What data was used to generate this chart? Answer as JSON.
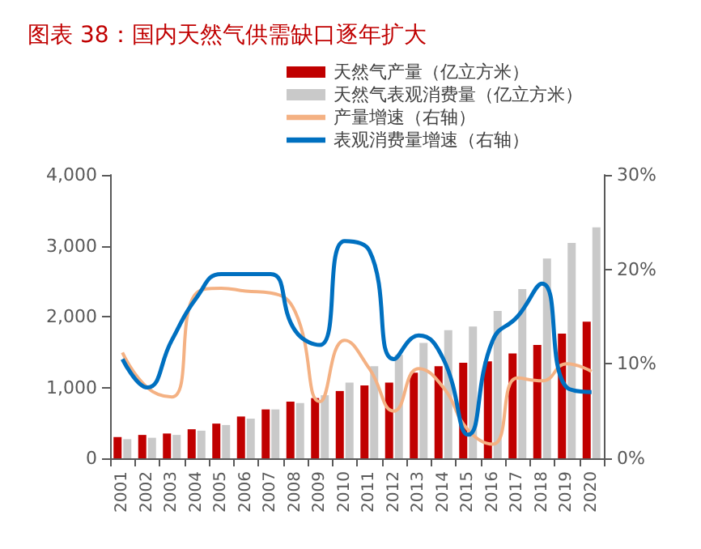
{
  "chart_data": {
    "type": "bar",
    "title": "图表 38：国内天然气供需缺口逐年扩大",
    "categories": [
      "2001",
      "2002",
      "2003",
      "2004",
      "2005",
      "2006",
      "2007",
      "2008",
      "2009",
      "2010",
      "2011",
      "2012",
      "2013",
      "2014",
      "2015",
      "2016",
      "2017",
      "2018",
      "2019",
      "2020"
    ],
    "series": [
      {
        "name": "天然气产量（亿立方米）",
        "color": "#c00000",
        "values": [
          300,
          330,
          350,
          410,
          490,
          590,
          690,
          800,
          850,
          950,
          1030,
          1070,
          1210,
          1300,
          1350,
          1370,
          1480,
          1600,
          1760,
          1930
        ]
      },
      {
        "name": "天然气表观消费量（亿立方米）",
        "color": "#c9c9c9",
        "values": [
          270,
          290,
          330,
          390,
          470,
          560,
          690,
          780,
          890,
          1070,
          1300,
          1460,
          1630,
          1810,
          1860,
          2080,
          2390,
          2820,
          3040,
          3260
        ]
      },
      {
        "name": "产量增速（右轴）",
        "type": "line",
        "axis": "y2",
        "color": "#f4b183",
        "values": [
          11.2,
          7.5,
          6.5,
          17.5,
          18,
          17.7,
          17.5,
          15.5,
          6,
          12.5,
          9.5,
          5,
          9.5,
          7.5,
          3,
          1.5,
          8.5,
          8.2,
          10,
          9.2
        ]
      },
      {
        "name": "表观消费量增速（右轴）",
        "type": "line",
        "axis": "y2",
        "color": "#0070c0",
        "values": [
          10.5,
          7.5,
          12.5,
          17,
          19.5,
          19.5,
          19.5,
          13.5,
          12,
          23,
          22,
          10.5,
          13,
          10.5,
          2.5,
          12.5,
          15,
          18.5,
          7.5,
          7
        ]
      }
    ],
    "ylim": [
      0,
      4000
    ],
    "yticks": [
      0,
      {
        "value": 1000,
        "label": "1,000"
      },
      {
        "value": 2000,
        "label": "2,000"
      },
      {
        "value": 3000,
        "label": "3,000"
      },
      {
        "value": 4000,
        "label": "4,000"
      }
    ],
    "y2lim": [
      0,
      30
    ],
    "y2ticks": [
      {
        "value": 0,
        "label": "0%"
      },
      {
        "value": 10,
        "label": "10%"
      },
      {
        "value": 20,
        "label": "20%"
      },
      {
        "value": 30,
        "label": "30%"
      }
    ],
    "legend": "top right",
    "grid": false,
    "marker": "none"
  }
}
